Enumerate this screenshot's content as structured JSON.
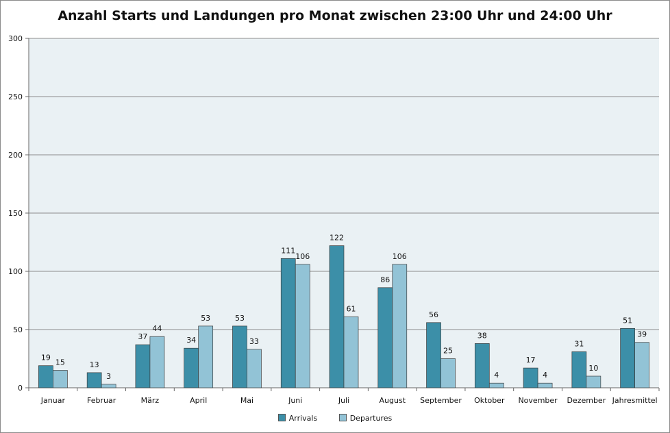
{
  "chart_data": {
    "type": "bar",
    "title": "Anzahl Starts und Landungen pro Monat zwischen 23:00 Uhr und 24:00 Uhr",
    "xlabel": "",
    "ylabel": "",
    "ylim": [
      0,
      300
    ],
    "yticks": [
      0,
      50,
      100,
      150,
      200,
      250,
      300
    ],
    "grid": true,
    "legend_position": "bottom",
    "categories": [
      "Januar",
      "Februar",
      "März",
      "April",
      "Mai",
      "Juni",
      "Juli",
      "August",
      "September",
      "Oktober",
      "November",
      "Dezember",
      "Jahresmittel"
    ],
    "series": [
      {
        "name": "Arrivals",
        "color": "#3c8fa8",
        "values": [
          19,
          13,
          37,
          34,
          53,
          111,
          122,
          86,
          56,
          38,
          17,
          31,
          51
        ]
      },
      {
        "name": "Departures",
        "color": "#92c3d6",
        "values": [
          15,
          3,
          44,
          53,
          33,
          106,
          61,
          106,
          25,
          4,
          4,
          10,
          39
        ]
      }
    ]
  }
}
